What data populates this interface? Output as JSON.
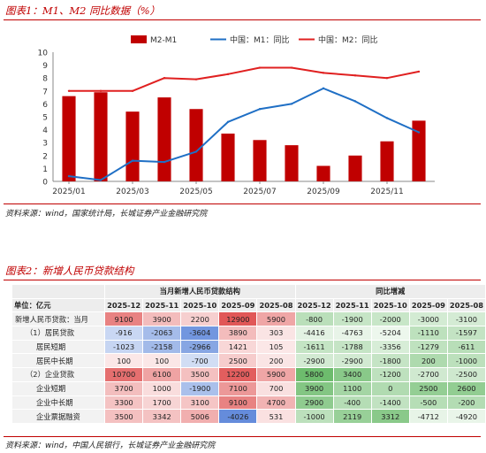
{
  "figure1": {
    "title": "图表1：M1、M2 同比数据（%）",
    "source": "资料来源：wind，国家统计局，长城证券产业金融研究院"
  },
  "figure2": {
    "title": "图表2：新增人民币贷款结构",
    "source": "资料来源：wind，中国人民银行，长城证券产业金融研究院",
    "table": {
      "group_current": "当月新增人民币贷款结构",
      "group_yoy": "同比增减",
      "unit_label": "单位：亿元",
      "columns": [
        "2025-12",
        "2025-11",
        "2025-10",
        "2025-09",
        "2025-08",
        "2025-12",
        "2025-11",
        "2025-10",
        "2025-09",
        "2025-08"
      ],
      "rows": [
        {
          "label": "新增人民币贷款：当月",
          "indent": 0,
          "values": [
            9100,
            3900,
            2200,
            12900,
            5900,
            -800,
            -1900,
            -2000,
            -3000,
            -3100
          ]
        },
        {
          "label": "（1）居民贷款",
          "indent": 1,
          "values": [
            -916,
            -2063,
            -3604,
            3890,
            303,
            -4416,
            -4763,
            -5204,
            -1110,
            -1597
          ]
        },
        {
          "label": "居民短期",
          "indent": 2,
          "values": [
            -1023,
            -2158,
            -2966,
            1421,
            105,
            -1611,
            -1788,
            -3356,
            -1279,
            -611
          ]
        },
        {
          "label": "居民中长期",
          "indent": 2,
          "values": [
            100,
            100,
            -700,
            2500,
            200,
            -2900,
            -2900,
            -1800,
            200,
            -1000
          ]
        },
        {
          "label": "（2）企业贷款",
          "indent": 1,
          "values": [
            10700,
            6100,
            3500,
            12200,
            5900,
            5800,
            3400,
            -1200,
            -2700,
            -2500
          ]
        },
        {
          "label": "企业短期",
          "indent": 2,
          "values": [
            3700,
            1000,
            -1900,
            7100,
            700,
            3900,
            1100,
            0,
            2500,
            2600
          ]
        },
        {
          "label": "企业中长期",
          "indent": 2,
          "values": [
            3300,
            1700,
            3100,
            9100,
            4700,
            2900,
            -400,
            -1400,
            -500,
            -200
          ]
        },
        {
          "label": "企业票据融资",
          "indent": 2,
          "values": [
            3500,
            3342,
            5006,
            -4026,
            531,
            -1000,
            2119,
            3312,
            -4712,
            -4920
          ]
        }
      ]
    }
  },
  "chart_data": {
    "type": "bar+line",
    "categories": [
      "2025/01",
      "2025/02",
      "2025/03",
      "2025/04",
      "2025/05",
      "2025/06",
      "2025/07",
      "2025/08",
      "2025/09",
      "2025/10",
      "2025/11",
      "2025/12"
    ],
    "x_tick_labels": [
      "2025/01",
      "2025/03",
      "2025/05",
      "2025/07",
      "2025/09",
      "2025/11"
    ],
    "ylim": [
      0,
      10
    ],
    "y_ticks": [
      0,
      1,
      2,
      3,
      4,
      5,
      6,
      7,
      8,
      9,
      10
    ],
    "grid": false,
    "legend_position": "top",
    "series": [
      {
        "name": "M2-M1",
        "type": "bar",
        "color": "#c00000",
        "values": [
          6.6,
          6.9,
          5.4,
          6.5,
          5.6,
          3.7,
          3.2,
          2.8,
          1.2,
          2.0,
          3.1,
          4.7
        ]
      },
      {
        "name": "中国：M1：同比",
        "type": "line",
        "color": "#1f6fc5",
        "values": [
          0.4,
          0.1,
          1.6,
          1.5,
          2.3,
          4.6,
          5.6,
          6.0,
          7.2,
          6.2,
          4.9,
          3.8
        ]
      },
      {
        "name": "中国：M2：同比",
        "type": "line",
        "color": "#e02020",
        "values": [
          7.0,
          7.0,
          7.0,
          8.0,
          7.9,
          8.3,
          8.8,
          8.8,
          8.4,
          8.2,
          8.0,
          8.5
        ]
      }
    ]
  }
}
